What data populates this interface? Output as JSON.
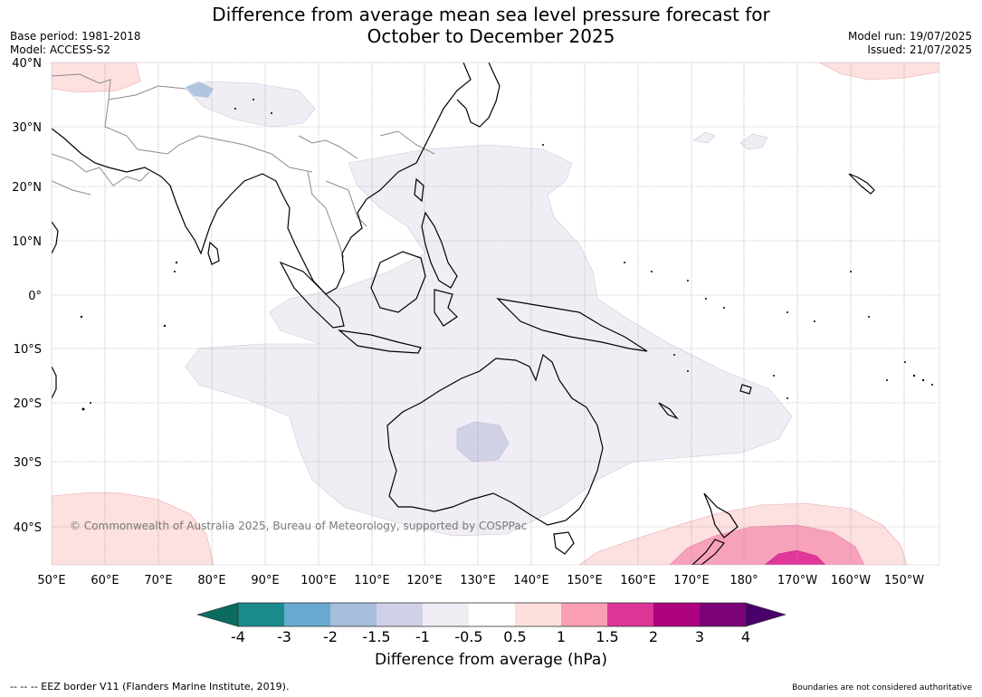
{
  "header": {
    "title_line1": "Difference from average mean sea level pressure forecast for",
    "title_line2": "October to December 2025",
    "base_period": "Base period: 1981-2018",
    "model": "Model: ACCESS-S2",
    "model_run": "Model run: 19/07/2025",
    "issued": "Issued: 21/07/2025"
  },
  "map": {
    "lat_labels": [
      "40°N",
      "30°N",
      "20°N",
      "10°N",
      "0°",
      "10°S",
      "20°S",
      "30°S",
      "40°S"
    ],
    "lon_labels": [
      "50°E",
      "60°E",
      "70°E",
      "80°E",
      "90°E",
      "100°E",
      "110°E",
      "120°E",
      "130°E",
      "140°E",
      "150°E",
      "160°E",
      "170°E",
      "180°",
      "170°W",
      "160°W",
      "150°W"
    ],
    "copyright": "© Commonwealth of Australia 2025, Bureau of Meteorology, supported by COSPPac",
    "colors": {
      "neg_0_5_to_neg_1": "#f1edf5",
      "neg_1_to_neg_1_5": "#d2d2e6",
      "pos_0_5_to_1": "#fde0e0",
      "pos_1_to_1_5": "#f8a1bb",
      "pos_1_5_to_2": "#e0379a",
      "coast": "#000000",
      "border": "#8c8c8c"
    }
  },
  "colorbar": {
    "tick_labels": [
      "-4",
      "-3",
      "-2",
      "-1.5",
      "-1",
      "-0.5",
      "0.5",
      "1",
      "1.5",
      "2",
      "3",
      "4"
    ],
    "segment_colors": [
      "#1a8a8c",
      "#67a9cf",
      "#a6bddb",
      "#d0d1e6",
      "#f1edf5",
      "#ffffff",
      "#fde0dd",
      "#fa9fb5",
      "#dd3497",
      "#ae017e",
      "#7a0177"
    ],
    "under_color": "#0b6b5e",
    "over_color": "#49006a",
    "label": "Difference from average (hPa)"
  },
  "footer": {
    "eez": "--  --  -- EEZ border V11 (Flanders Marine Institute, 2019).",
    "boundaries": "Boundaries are not considered authoritative"
  }
}
